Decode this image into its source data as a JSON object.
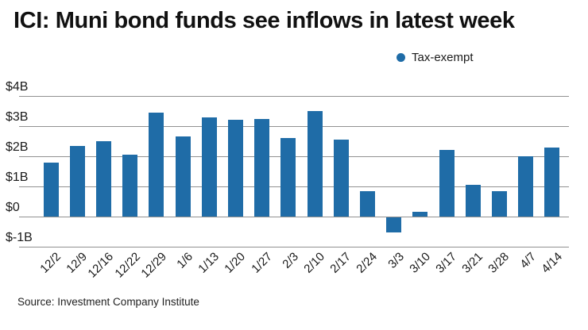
{
  "title": "ICI: Muni bond funds see inflows in latest week",
  "legend": {
    "label": "Tax-exempt",
    "color": "#1f6ca7"
  },
  "source": "Source: Investment Company Institute",
  "chart_data": {
    "type": "bar",
    "title": "ICI: Muni bond funds see inflows in latest week",
    "series_name": "Tax-exempt",
    "categories": [
      "12/2",
      "12/9",
      "12/16",
      "12/22",
      "12/29",
      "1/6",
      "1/13",
      "1/20",
      "1/27",
      "2/3",
      "2/10",
      "2/17",
      "2/24",
      "3/3",
      "3/10",
      "3/17",
      "3/21",
      "3/28",
      "4/7",
      "4/14"
    ],
    "values": [
      1.8,
      2.35,
      2.5,
      2.05,
      3.45,
      2.65,
      3.3,
      3.2,
      3.25,
      2.6,
      3.5,
      2.55,
      0.85,
      -0.5,
      0.15,
      2.2,
      1.05,
      0.85,
      2.0,
      2.3
    ],
    "value_unit": "billion USD",
    "xlabel": "",
    "ylabel": "",
    "ylim": [
      -1,
      4
    ],
    "yticks": [
      "$4B",
      "$3B",
      "$2B",
      "$1B",
      "$0",
      "$-1B"
    ],
    "ytick_values": [
      4,
      3,
      2,
      1,
      0,
      -1
    ],
    "bar_color": "#1f6ca7",
    "grid": true,
    "legend_position": "top-right"
  }
}
